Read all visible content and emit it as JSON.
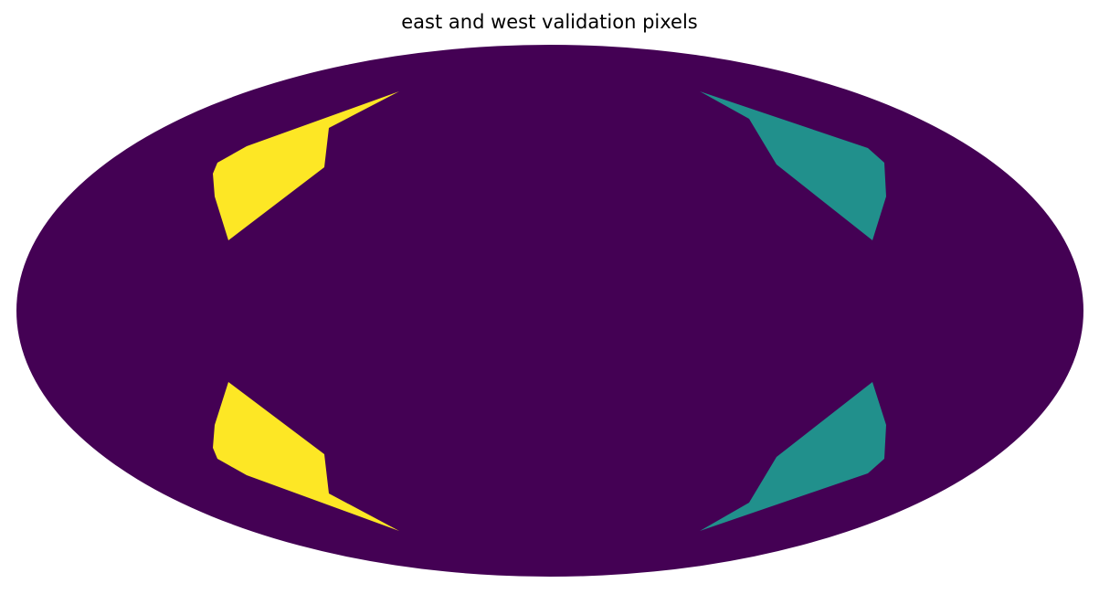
{
  "figure": {
    "title": "east and west validation pixels"
  },
  "map": {
    "projection": "mollweide",
    "colormap": "viridis",
    "colors": {
      "background_region": "#440154",
      "east_region": "#21908c",
      "west_region": "#fde725"
    }
  }
}
